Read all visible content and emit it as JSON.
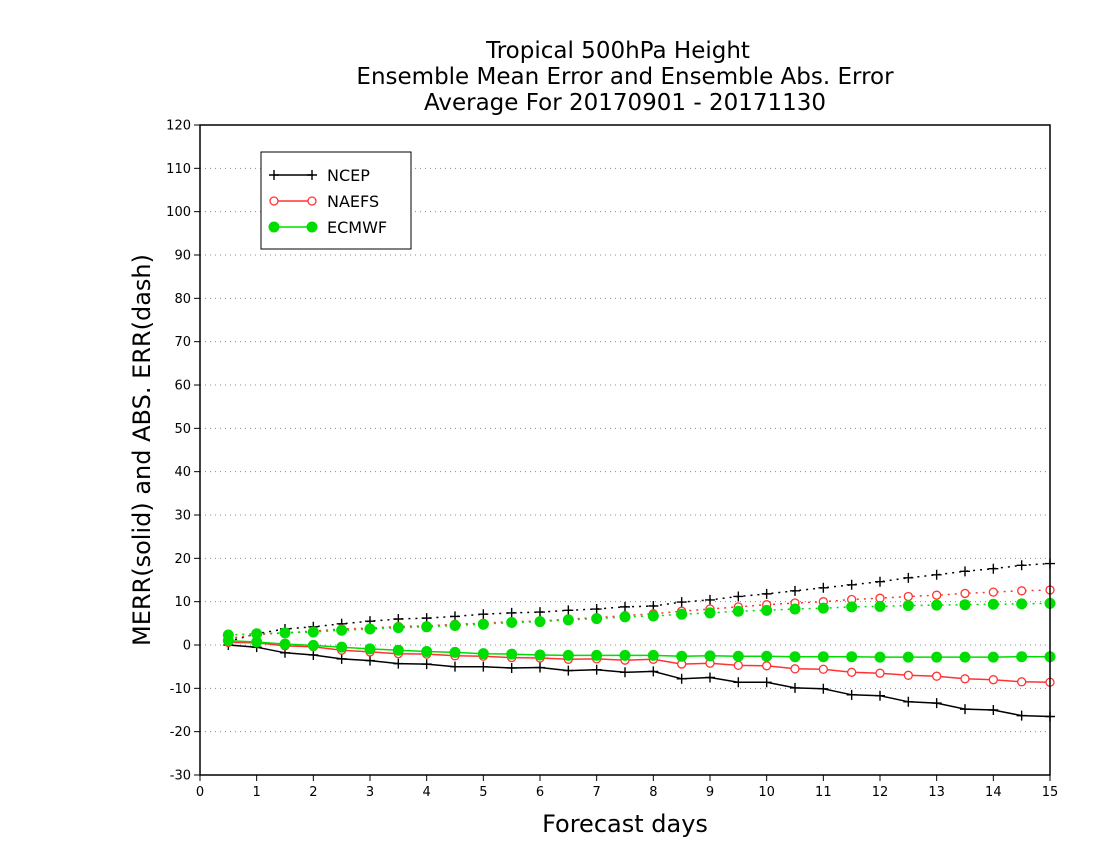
{
  "chart_data": {
    "type": "line",
    "title_lines": [
      "Tropical 500hPa Height",
      "Ensemble Mean Error and Ensemble Abs. Error",
      "Average For 20170901 - 20171130"
    ],
    "xlabel": "Forecast days",
    "ylabel": "MERR(solid) and ABS. ERR(dash)",
    "xlim": [
      0,
      15
    ],
    "ylim": [
      -30,
      120
    ],
    "xticks": [
      0,
      1,
      2,
      3,
      4,
      5,
      6,
      7,
      8,
      9,
      10,
      11,
      12,
      13,
      14,
      15
    ],
    "yticks": [
      -30,
      -20,
      -10,
      0,
      10,
      20,
      30,
      40,
      50,
      60,
      70,
      80,
      90,
      100,
      110,
      120
    ],
    "grid": true,
    "legend_position": "top-left",
    "x": [
      0.5,
      1,
      1.5,
      2,
      2.5,
      3,
      3.5,
      4,
      4.5,
      5,
      5.5,
      6,
      6.5,
      7,
      7.5,
      8,
      8.5,
      9,
      9.5,
      10,
      10.5,
      11,
      11.5,
      12,
      12.5,
      13,
      13.5,
      14,
      14.5,
      15
    ],
    "series": [
      {
        "name": "NCEP",
        "color": "#000000",
        "marker": "plus",
        "merr": [
          0,
          -0.5,
          -1.8,
          -2.3,
          -3.2,
          -3.6,
          -4.3,
          -4.4,
          -5.0,
          -5.0,
          -5.3,
          -5.2,
          -5.9,
          -5.7,
          -6.3,
          -6.1,
          -7.8,
          -7.5,
          -8.6,
          -8.6,
          -9.9,
          -10.1,
          -11.5,
          -11.7,
          -13.1,
          -13.4,
          -14.8,
          -15.0,
          -16.3,
          -16.5
        ],
        "abserr": [
          0.8,
          2.6,
          3.7,
          4.2,
          4.9,
          5.5,
          6.0,
          6.2,
          6.6,
          7.1,
          7.4,
          7.6,
          8.0,
          8.3,
          8.8,
          9.0,
          9.9,
          10.4,
          11.2,
          11.8,
          12.5,
          13.2,
          13.9,
          14.6,
          15.5,
          16.2,
          17.0,
          17.6,
          18.4,
          18.8
        ]
      },
      {
        "name": "NAEFS",
        "color": "#ff3333",
        "marker": "open-circle",
        "merr": [
          0.6,
          0.5,
          -0.2,
          -0.4,
          -1.2,
          -1.6,
          -2.0,
          -2.1,
          -2.5,
          -2.6,
          -2.9,
          -3.0,
          -3.3,
          -3.2,
          -3.5,
          -3.3,
          -4.4,
          -4.2,
          -4.7,
          -4.8,
          -5.5,
          -5.6,
          -6.3,
          -6.5,
          -7.0,
          -7.2,
          -7.8,
          -8.0,
          -8.5,
          -8.6
        ],
        "abserr": [
          1.5,
          2.4,
          2.8,
          3.2,
          3.7,
          3.9,
          4.3,
          4.4,
          4.8,
          5.0,
          5.4,
          5.5,
          6.0,
          6.3,
          6.8,
          7.2,
          7.8,
          8.3,
          8.8,
          9.3,
          9.7,
          10.0,
          10.5,
          10.8,
          11.2,
          11.5,
          11.9,
          12.2,
          12.5,
          12.7
        ]
      },
      {
        "name": "ECMWF",
        "color": "#00dd00",
        "marker": "filled-circle",
        "merr": [
          1.0,
          0.7,
          0.2,
          -0.1,
          -0.5,
          -0.9,
          -1.2,
          -1.5,
          -1.7,
          -2.0,
          -2.1,
          -2.3,
          -2.4,
          -2.4,
          -2.4,
          -2.4,
          -2.6,
          -2.5,
          -2.6,
          -2.6,
          -2.7,
          -2.7,
          -2.7,
          -2.8,
          -2.8,
          -2.8,
          -2.8,
          -2.8,
          -2.7,
          -2.7
        ],
        "abserr": [
          2.3,
          2.6,
          2.8,
          3.0,
          3.4,
          3.7,
          4.0,
          4.2,
          4.5,
          4.8,
          5.2,
          5.4,
          5.8,
          6.1,
          6.5,
          6.7,
          7.1,
          7.4,
          7.8,
          8.0,
          8.3,
          8.5,
          8.8,
          8.9,
          9.1,
          9.2,
          9.3,
          9.4,
          9.5,
          9.6
        ]
      }
    ]
  }
}
